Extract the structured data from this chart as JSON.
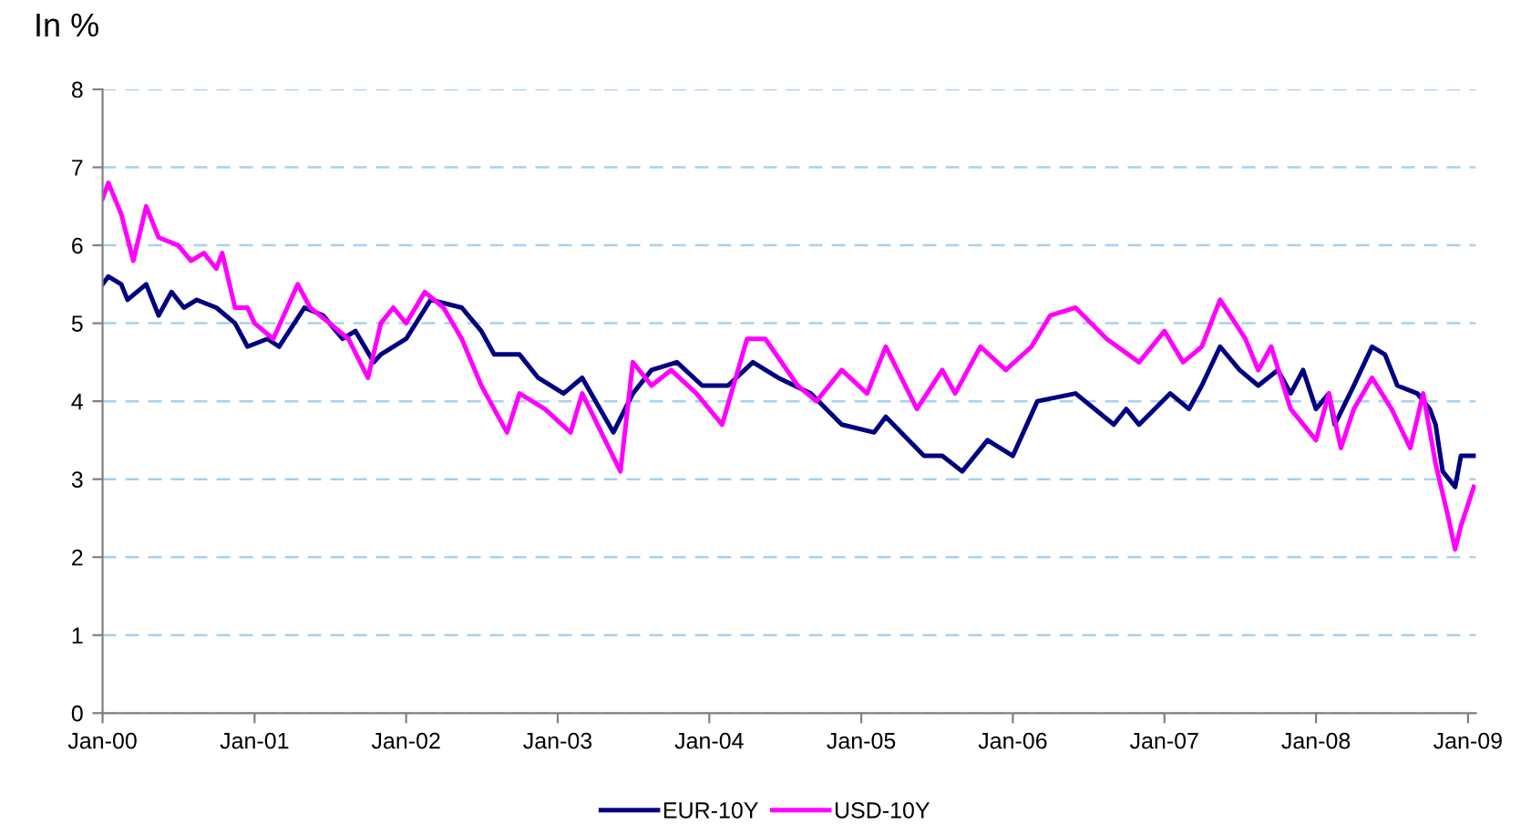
{
  "chart_data": {
    "type": "line",
    "ylabel": "In %",
    "xlim": [
      "2000-01-01",
      "2009-01-20"
    ],
    "xticks": [
      {
        "value": "2000-01-01",
        "label": "Jan-00"
      },
      {
        "value": "2001-01-01",
        "label": "Jan-01"
      },
      {
        "value": "2002-01-01",
        "label": "Jan-02"
      },
      {
        "value": "2003-01-01",
        "label": "Jan-03"
      },
      {
        "value": "2004-01-01",
        "label": "Jan-04"
      },
      {
        "value": "2005-01-01",
        "label": "Jan-05"
      },
      {
        "value": "2006-01-01",
        "label": "Jan-06"
      },
      {
        "value": "2007-01-01",
        "label": "Jan-07"
      },
      {
        "value": "2008-01-01",
        "label": "Jan-08"
      },
      {
        "value": "2009-01-01",
        "label": "Jan-09"
      }
    ],
    "ylim": [
      0,
      8
    ],
    "yticks": [
      0,
      1,
      2,
      3,
      4,
      5,
      6,
      7,
      8
    ],
    "grid": "y",
    "legend": "bottom",
    "marker": "none",
    "line_style": "solid",
    "series": [
      {
        "name": "EUR-10Y",
        "color": "#000080",
        "x": [
          "2000-01-01",
          "2000-01-15",
          "2000-02-15",
          "2000-03-01",
          "2000-04-15",
          "2000-05-15",
          "2000-06-15",
          "2000-07-15",
          "2000-08-15",
          "2000-10-01",
          "2000-11-15",
          "2000-12-15",
          "2001-02-01",
          "2001-03-01",
          "2001-05-01",
          "2001-06-15",
          "2001-08-01",
          "2001-09-01",
          "2001-10-15",
          "2001-11-01",
          "2002-01-01",
          "2002-03-01",
          "2002-05-15",
          "2002-07-01",
          "2002-08-01",
          "2002-10-01",
          "2002-11-15",
          "2003-01-15",
          "2003-03-01",
          "2003-05-15",
          "2003-07-01",
          "2003-08-15",
          "2003-10-15",
          "2003-12-15",
          "2004-02-15",
          "2004-04-15",
          "2004-06-15",
          "2004-09-01",
          "2004-11-15",
          "2005-02-01",
          "2005-03-01",
          "2005-06-01",
          "2005-07-15",
          "2005-09-01",
          "2005-11-01",
          "2006-01-01",
          "2006-03-01",
          "2006-06-01",
          "2006-09-01",
          "2006-10-01",
          "2006-11-01",
          "2007-01-15",
          "2007-03-01",
          "2007-04-01",
          "2007-05-15",
          "2007-07-01",
          "2007-08-15",
          "2007-10-01",
          "2007-11-01",
          "2007-12-01",
          "2008-01-01",
          "2008-02-01",
          "2008-02-15",
          "2008-04-01",
          "2008-05-15",
          "2008-06-15",
          "2008-07-15",
          "2008-09-01",
          "2008-10-01",
          "2008-10-15",
          "2008-11-01",
          "2008-12-01",
          "2008-12-15",
          "2009-01-15"
        ],
        "values": [
          5.5,
          5.6,
          5.5,
          5.3,
          5.5,
          5.1,
          5.4,
          5.2,
          5.3,
          5.2,
          5.0,
          4.7,
          4.8,
          4.7,
          5.2,
          5.1,
          4.8,
          4.9,
          4.5,
          4.6,
          4.8,
          5.3,
          5.2,
          4.9,
          4.6,
          4.6,
          4.3,
          4.1,
          4.3,
          3.6,
          4.1,
          4.4,
          4.5,
          4.2,
          4.2,
          4.5,
          4.3,
          4.1,
          3.7,
          3.6,
          3.8,
          3.3,
          3.3,
          3.1,
          3.5,
          3.3,
          4.0,
          4.1,
          3.7,
          3.9,
          3.7,
          4.1,
          3.9,
          4.2,
          4.7,
          4.4,
          4.2,
          4.4,
          4.1,
          4.4,
          3.9,
          4.1,
          3.7,
          4.2,
          4.7,
          4.6,
          4.2,
          4.1,
          3.9,
          3.7,
          3.1,
          2.9,
          3.3,
          3.3
        ]
      },
      {
        "name": "USD-10Y",
        "color": "#ff00ff",
        "x": [
          "2000-01-01",
          "2000-01-15",
          "2000-02-15",
          "2000-03-15",
          "2000-04-15",
          "2000-05-15",
          "2000-07-01",
          "2000-08-01",
          "2000-09-01",
          "2000-10-01",
          "2000-10-15",
          "2000-11-15",
          "2000-12-15",
          "2001-01-01",
          "2001-02-15",
          "2001-04-15",
          "2001-05-15",
          "2001-07-01",
          "2001-08-15",
          "2001-10-01",
          "2001-11-01",
          "2001-12-01",
          "2002-01-01",
          "2002-02-15",
          "2002-04-01",
          "2002-05-15",
          "2002-07-01",
          "2002-09-01",
          "2002-10-01",
          "2002-12-01",
          "2003-02-01",
          "2003-03-01",
          "2003-06-01",
          "2003-07-01",
          "2003-08-15",
          "2003-10-01",
          "2003-12-01",
          "2004-02-01",
          "2004-04-01",
          "2004-05-15",
          "2004-08-01",
          "2004-09-15",
          "2004-11-15",
          "2005-01-15",
          "2005-03-01",
          "2005-05-15",
          "2005-07-15",
          "2005-08-15",
          "2005-10-15",
          "2005-12-15",
          "2006-02-15",
          "2006-04-01",
          "2006-06-01",
          "2006-08-15",
          "2006-11-01",
          "2007-01-01",
          "2007-02-15",
          "2007-04-01",
          "2007-05-15",
          "2007-07-15",
          "2007-08-15",
          "2007-09-15",
          "2007-11-01",
          "2008-01-01",
          "2008-02-01",
          "2008-03-01",
          "2008-04-01",
          "2008-05-15",
          "2008-07-01",
          "2008-08-15",
          "2008-09-15",
          "2008-10-15",
          "2008-11-15",
          "2008-12-01",
          "2008-12-15",
          "2009-01-15"
        ],
        "values": [
          6.6,
          6.8,
          6.4,
          5.8,
          6.5,
          6.1,
          6.0,
          5.8,
          5.9,
          5.7,
          5.9,
          5.2,
          5.2,
          5.0,
          4.8,
          5.5,
          5.2,
          5.0,
          4.8,
          4.3,
          5.0,
          5.2,
          5.0,
          5.4,
          5.2,
          4.8,
          4.2,
          3.6,
          4.1,
          3.9,
          3.6,
          4.1,
          3.1,
          4.5,
          4.2,
          4.4,
          4.1,
          3.7,
          4.8,
          4.8,
          4.2,
          4.0,
          4.4,
          4.1,
          4.7,
          3.9,
          4.4,
          4.1,
          4.7,
          4.4,
          4.7,
          5.1,
          5.2,
          4.8,
          4.5,
          4.9,
          4.5,
          4.7,
          5.3,
          4.8,
          4.4,
          4.7,
          3.9,
          3.5,
          4.1,
          3.4,
          3.9,
          4.3,
          3.9,
          3.4,
          4.1,
          3.2,
          2.5,
          2.1,
          2.4,
          2.9
        ]
      }
    ]
  }
}
